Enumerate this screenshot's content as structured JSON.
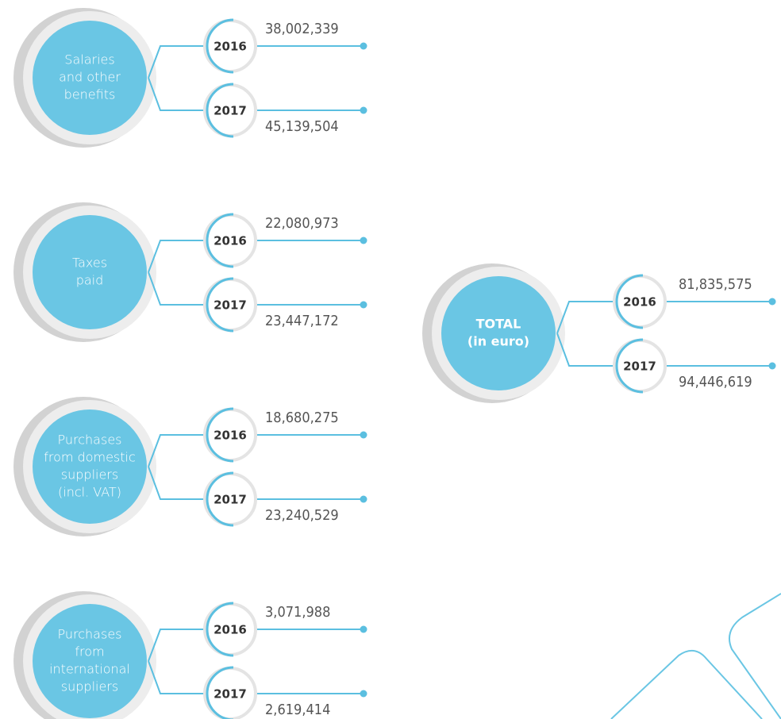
{
  "groups": [
    {
      "label": [
        "Salaries",
        "and other",
        "benefits"
      ],
      "rows": [
        {
          "year": "2016",
          "value": "38,002,339"
        },
        {
          "year": "2017",
          "value": "45,139,504"
        }
      ]
    },
    {
      "label": [
        "Taxes",
        "paid"
      ],
      "rows": [
        {
          "year": "2016",
          "value": "22,080,973"
        },
        {
          "year": "2017",
          "value": "23,447,172"
        }
      ]
    },
    {
      "label": [
        "Purchases",
        "from domestic",
        "suppliers",
        "(incl. VAT)"
      ],
      "rows": [
        {
          "year": "2016",
          "value": "18,680,275"
        },
        {
          "year": "2017",
          "value": "23,240,529"
        }
      ]
    },
    {
      "label": [
        "Purchases",
        "from",
        "international",
        "suppliers"
      ],
      "rows": [
        {
          "year": "2016",
          "value": "3,071,988"
        },
        {
          "year": "2017",
          "value": "2,619,414"
        }
      ]
    }
  ],
  "total": {
    "label": [
      "TOTAL",
      "(in euro)"
    ],
    "rows": [
      {
        "year": "2016",
        "value": "81,835,575"
      },
      {
        "year": "2017",
        "value": "94,446,619"
      }
    ]
  }
}
